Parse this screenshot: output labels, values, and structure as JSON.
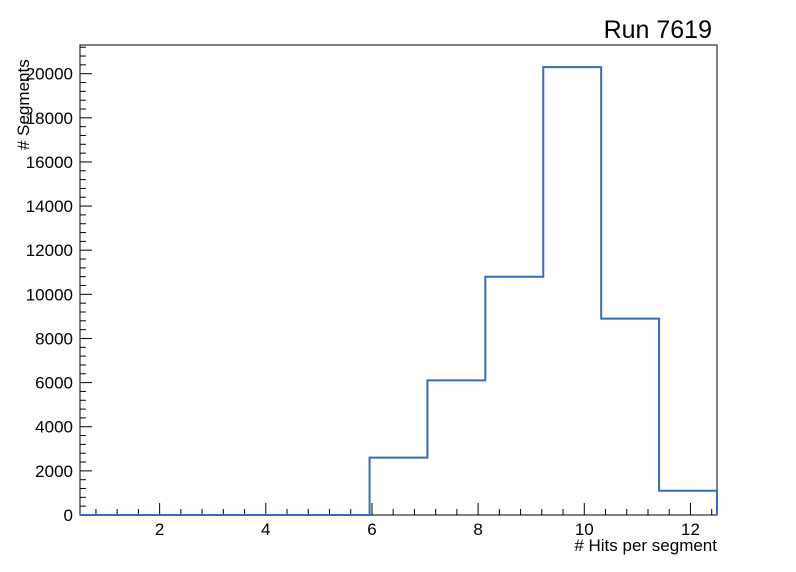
{
  "chart_data": {
    "type": "step-histogram",
    "title": "Run 7619",
    "xlabel": "# Hits per segment",
    "ylabel": "# Segments",
    "xlim": [
      0.5,
      12.5
    ],
    "ylim": [
      0,
      21300
    ],
    "bin_edges": [
      0.5,
      1.591,
      2.682,
      3.773,
      4.864,
      5.955,
      7.045,
      8.136,
      9.227,
      10.318,
      11.409,
      12.5
    ],
    "counts": [
      0,
      0,
      0,
      0,
      0,
      2600,
      6100,
      10800,
      20300,
      8900,
      1100
    ],
    "x_tick_values": [
      2,
      4,
      6,
      8,
      10,
      12
    ],
    "x_tick_labels": [
      "2",
      "4",
      "6",
      "8",
      "10",
      "12"
    ],
    "x_minor_step": 0.4,
    "y_tick_step": 2000,
    "y_minor_step": 400,
    "y_tick_labels": [
      "0",
      "2000",
      "4000",
      "6000",
      "8000",
      "10000",
      "12000",
      "14000",
      "16000",
      "18000",
      "20000"
    ],
    "line_color": "#3b6bb5",
    "axis_color": "#000000",
    "background_color": "#ffffff",
    "grid": false,
    "legend": null
  }
}
